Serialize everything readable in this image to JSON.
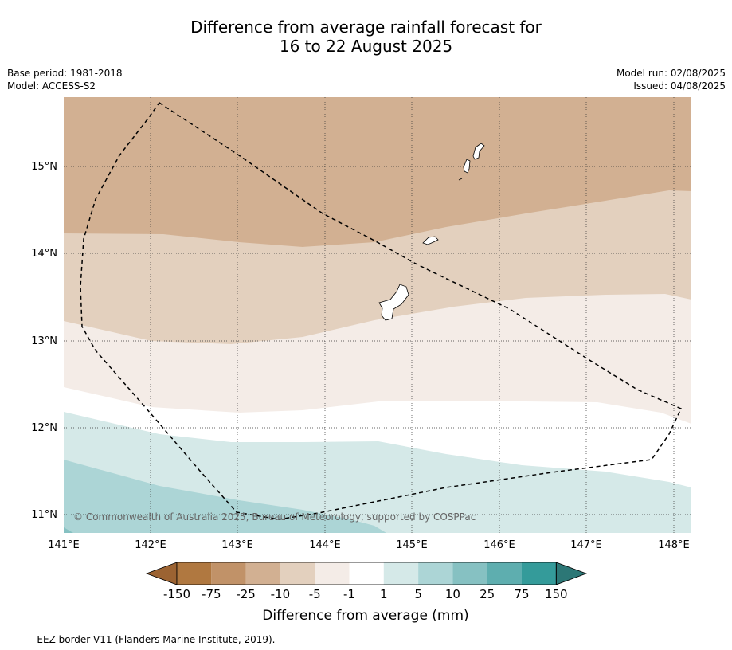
{
  "title_line1": "Difference from average rainfall forecast for",
  "title_line2": "16 to 22 August 2025",
  "base_period": "Base period: 1981-2018",
  "model": "Model: ACCESS-S2",
  "model_run": "Model run: 02/08/2025",
  "issued": "Issued: 04/08/2025",
  "copyright": "© Commonwealth of Australia 2025, Bureau of Meteorology, supported by COSPPac",
  "map": {
    "lon_ticks": [
      "141°E",
      "142°E",
      "143°E",
      "144°E",
      "145°E",
      "146°E",
      "147°E",
      "148°E"
    ],
    "lat_ticks": [
      "15°N",
      "14°N",
      "13°N",
      "12°N",
      "11°N"
    ]
  },
  "colorbar": {
    "title": "Difference from average (mm)",
    "labels": [
      "-150",
      "-75",
      "-25",
      "-10",
      "-5",
      "-1",
      "1",
      "5",
      "10",
      "25",
      "75",
      "150"
    ],
    "colors": [
      "#9c6332",
      "#b07840",
      "#c19268",
      "#d2b092",
      "#e3d0be",
      "#f4ece7",
      "#ffffff",
      "#d5e9e8",
      "#acd5d6",
      "#86c1c2",
      "#5eaeaf",
      "#349b9a",
      "#2c7776"
    ]
  },
  "footnote": "--  --  -- EEZ border V11 (Flanders Marine Institute, 2019)."
}
